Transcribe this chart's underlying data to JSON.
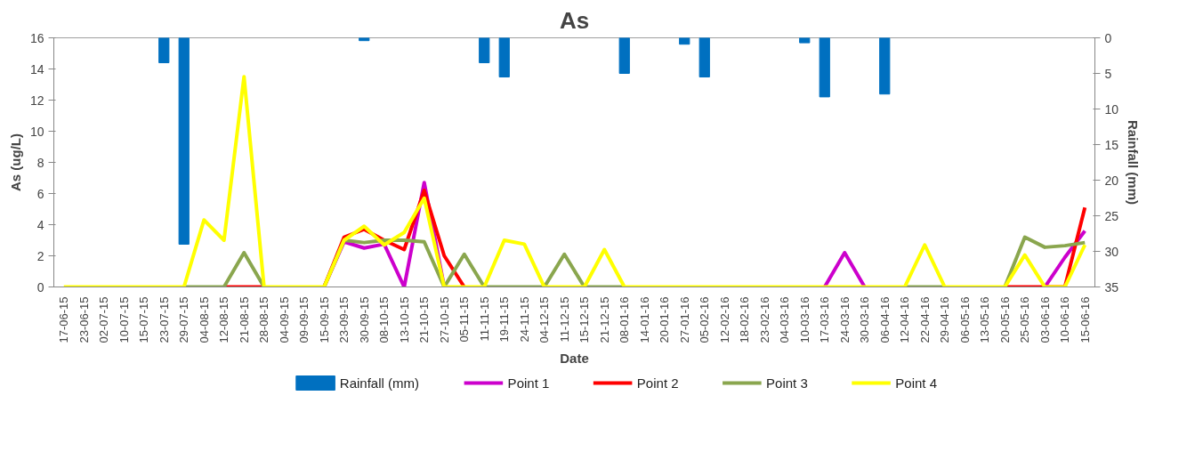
{
  "chart_data": {
    "type": "line",
    "title": "As",
    "xlabel": "Date",
    "ylabel": "As (ug/L)",
    "y2label": "Rainfall (mm)",
    "categories": [
      "17-06-15",
      "23-06-15",
      "02-07-15",
      "10-07-15",
      "15-07-15",
      "23-07-15",
      "29-07-15",
      "04-08-15",
      "12-08-15",
      "21-08-15",
      "28-08-15",
      "04-09-15",
      "09-09-15",
      "15-09-15",
      "23-09-15",
      "30-09-15",
      "08-10-15",
      "13-10-15",
      "21-10-15",
      "27-10-15",
      "05-11-15",
      "11-11-15",
      "19-11-15",
      "24-11-15",
      "04-12-15",
      "11-12-15",
      "15-12-15",
      "21-12-15",
      "08-01-16",
      "14-01-16",
      "20-01-16",
      "27-01-16",
      "05-02-16",
      "12-02-16",
      "18-02-16",
      "23-02-16",
      "04-03-16",
      "10-03-16",
      "17-03-16",
      "24-03-16",
      "30-03-16",
      "06-04-16",
      "12-04-16",
      "22-04-16",
      "29-04-16",
      "06-05-16",
      "13-05-16",
      "20-05-16",
      "25-05-16",
      "03-06-16",
      "10-06-16",
      "15-06-16"
    ],
    "series": [
      {
        "name": "Rainfall (mm)",
        "type": "bar",
        "axis": "y2",
        "color": "#0070c0",
        "values": [
          null,
          null,
          null,
          null,
          null,
          3.5,
          29,
          null,
          null,
          null,
          null,
          null,
          null,
          null,
          null,
          0.4,
          null,
          null,
          null,
          null,
          null,
          3.5,
          5.5,
          null,
          null,
          null,
          null,
          null,
          5.0,
          null,
          null,
          0.9,
          5.5,
          null,
          null,
          null,
          null,
          0.7,
          8.3,
          null,
          null,
          7.9,
          null,
          null,
          null,
          null,
          null,
          null,
          null,
          null,
          null,
          null
        ]
      },
      {
        "name": "Point 1",
        "color": "#cc00cc",
        "values": [
          null,
          null,
          null,
          null,
          null,
          null,
          null,
          null,
          null,
          null,
          null,
          null,
          null,
          0,
          2.9,
          2.5,
          2.75,
          0,
          6.7,
          0,
          null,
          null,
          null,
          null,
          null,
          null,
          null,
          null,
          null,
          null,
          null,
          null,
          null,
          null,
          null,
          null,
          null,
          null,
          0,
          2.2,
          0,
          null,
          null,
          null,
          null,
          null,
          null,
          null,
          null,
          0,
          1.9,
          3.6
        ]
      },
      {
        "name": "Point 2",
        "color": "#ff0000",
        "values": [
          null,
          null,
          null,
          null,
          null,
          null,
          null,
          null,
          0,
          0,
          0,
          null,
          null,
          0,
          3.2,
          3.7,
          3.0,
          2.4,
          6.2,
          2.0,
          0,
          null,
          null,
          null,
          null,
          null,
          null,
          null,
          null,
          null,
          null,
          null,
          null,
          null,
          null,
          null,
          null,
          null,
          null,
          null,
          null,
          null,
          null,
          null,
          null,
          null,
          null,
          0,
          0,
          0,
          0,
          5.1
        ]
      },
      {
        "name": "Point 3",
        "color": "#8aa64e",
        "values": [
          null,
          null,
          null,
          null,
          null,
          null,
          0,
          0,
          0,
          2.2,
          0,
          null,
          null,
          0,
          3.0,
          2.85,
          3.0,
          3.0,
          2.9,
          0,
          2.1,
          0,
          0,
          0,
          0,
          2.1,
          0,
          0,
          0,
          null,
          null,
          null,
          null,
          null,
          null,
          null,
          null,
          null,
          null,
          null,
          null,
          null,
          0,
          0,
          0,
          null,
          null,
          0,
          3.2,
          2.55,
          2.65,
          2.85
        ]
      },
      {
        "name": "Point 4",
        "color": "#ffff00",
        "values": [
          0,
          0,
          0,
          0,
          0,
          0,
          0,
          4.3,
          3.0,
          13.5,
          0,
          0,
          0,
          0,
          3.0,
          3.9,
          2.7,
          3.5,
          5.7,
          0,
          0,
          0,
          3.0,
          2.75,
          0,
          0,
          0,
          2.4,
          0,
          0,
          0,
          0,
          0,
          0,
          0,
          0,
          0,
          0,
          0,
          0,
          0,
          0,
          0,
          2.7,
          0,
          0,
          0,
          0,
          2.05,
          0,
          0,
          2.7
        ]
      }
    ],
    "ylim": [
      0,
      16
    ],
    "yticks": [
      0,
      2,
      4,
      6,
      8,
      10,
      12,
      14,
      16
    ],
    "y2lim": [
      35,
      0
    ],
    "y2ticks": [
      0,
      5,
      10,
      15,
      20,
      25,
      30,
      35
    ],
    "grid": false,
    "legend": "bottom",
    "marker": "none",
    "line_style": "solid"
  }
}
